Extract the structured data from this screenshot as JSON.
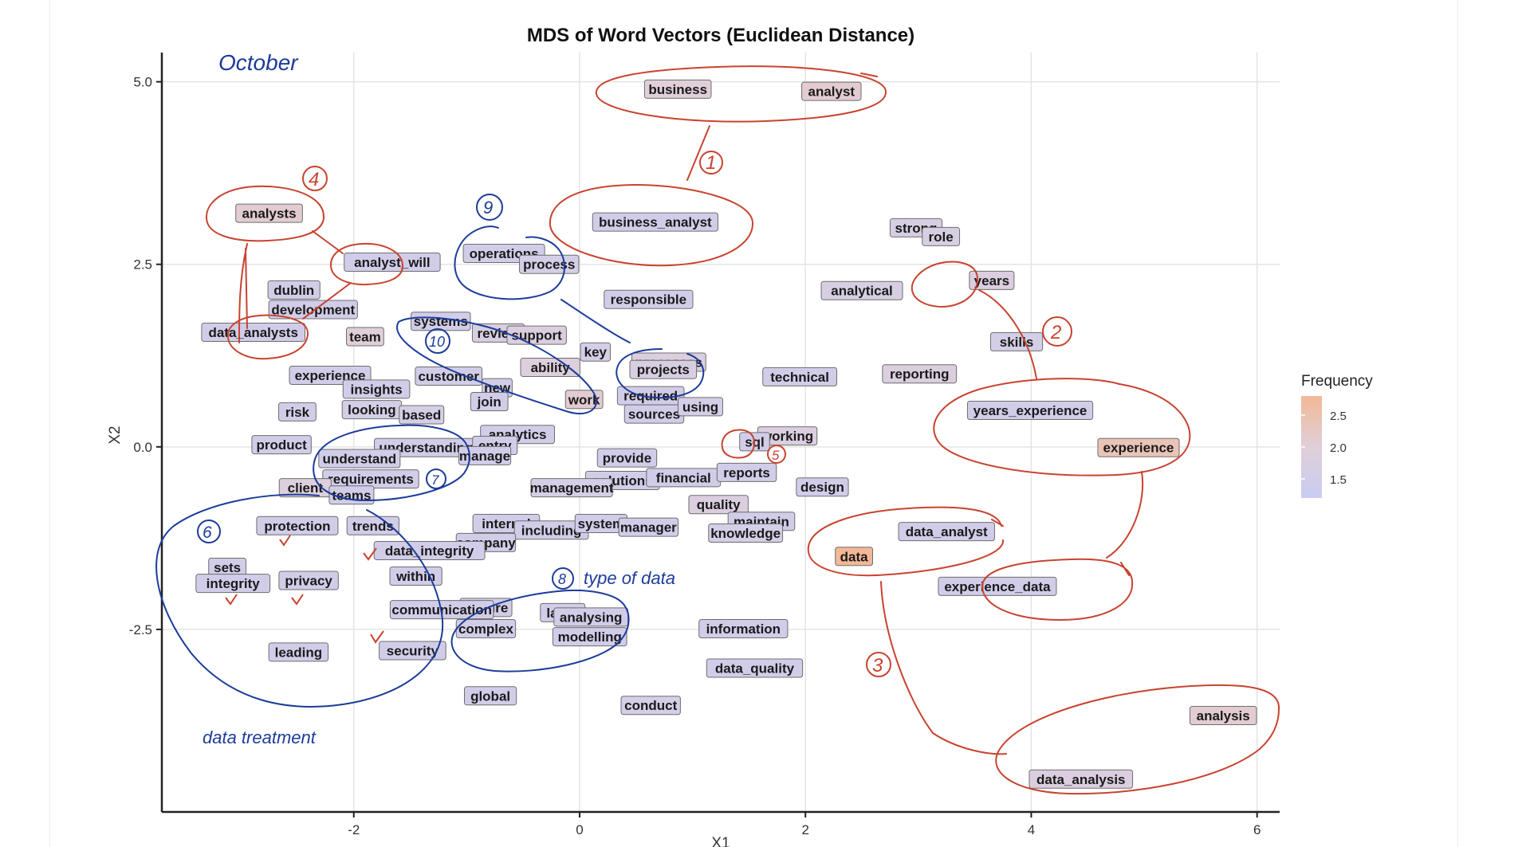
{
  "chart_data": {
    "type": "scatter",
    "title": "MDS of Word Vectors (Euclidean Distance)",
    "xlabel": "X1",
    "ylabel": "X2",
    "xlim": [
      -3.7,
      6.2
    ],
    "ylim": [
      -5.0,
      5.4
    ],
    "xticks": [
      -2,
      0,
      2,
      4,
      6
    ],
    "xtick_labels": [
      "-2",
      "0",
      "2",
      "4",
      "6"
    ],
    "yticks": [
      5.0,
      2.5,
      0.0,
      -2.5
    ],
    "ytick_labels": [
      "5.0",
      "2.5",
      "0.0",
      "-2.5"
    ],
    "grid": true,
    "legend": {
      "title": "Frequency",
      "position": "right",
      "ticks": [
        2.5,
        2.0,
        1.5
      ],
      "tick_labels": [
        "2.5",
        "2.0",
        "1.5"
      ],
      "range": [
        1.2,
        2.8
      ],
      "low_color": "#c8ccf2",
      "mid_color": "#e0cfd9",
      "high_color": "#f3b896"
    },
    "points": [
      {
        "label": "business",
        "x": 0.87,
        "y": 4.9,
        "freq": 2.0
      },
      {
        "label": "analyst",
        "x": 2.23,
        "y": 4.87,
        "freq": 2.1
      },
      {
        "label": "business_analyst",
        "x": 0.67,
        "y": 3.08,
        "freq": 1.5
      },
      {
        "label": "analysts",
        "x": -2.75,
        "y": 3.2,
        "freq": 2.1
      },
      {
        "label": "analyst_will",
        "x": -1.66,
        "y": 2.53,
        "freq": 1.5
      },
      {
        "label": "operations",
        "x": -0.67,
        "y": 2.65,
        "freq": 1.5
      },
      {
        "label": "process",
        "x": -0.27,
        "y": 2.5,
        "freq": 1.6
      },
      {
        "label": "dublin",
        "x": -2.53,
        "y": 2.15,
        "freq": 1.5
      },
      {
        "label": "development",
        "x": -2.36,
        "y": 1.88,
        "freq": 1.5
      },
      {
        "label": "responsible",
        "x": 0.61,
        "y": 2.02,
        "freq": 1.5
      },
      {
        "label": "systems",
        "x": -1.23,
        "y": 1.72,
        "freq": 1.5
      },
      {
        "label": "review",
        "x": -0.72,
        "y": 1.56,
        "freq": 1.7
      },
      {
        "label": "support",
        "x": -0.38,
        "y": 1.53,
        "freq": 1.8
      },
      {
        "label": "data_analysts",
        "x": -2.89,
        "y": 1.57,
        "freq": 1.5
      },
      {
        "label": "team",
        "x": -1.9,
        "y": 1.51,
        "freq": 2.0
      },
      {
        "label": "key",
        "x": 0.14,
        "y": 1.3,
        "freq": 1.6
      },
      {
        "label": "processes",
        "x": 0.79,
        "y": 1.16,
        "freq": 1.8
      },
      {
        "label": "projects",
        "x": 0.74,
        "y": 1.06,
        "freq": 1.7
      },
      {
        "label": "ability",
        "x": -0.26,
        "y": 1.09,
        "freq": 1.9
      },
      {
        "label": "experience",
        "x": -2.21,
        "y": 0.98,
        "freq": 1.5
      },
      {
        "label": "customer",
        "x": -1.16,
        "y": 0.97,
        "freq": 1.5
      },
      {
        "label": "insights",
        "x": -1.8,
        "y": 0.79,
        "freq": 1.5
      },
      {
        "label": "new",
        "x": -0.73,
        "y": 0.81,
        "freq": 1.5
      },
      {
        "label": "join",
        "x": -0.8,
        "y": 0.62,
        "freq": 1.5
      },
      {
        "label": "work",
        "x": 0.04,
        "y": 0.65,
        "freq": 2.1
      },
      {
        "label": "required",
        "x": 0.63,
        "y": 0.7,
        "freq": 1.5
      },
      {
        "label": "sources",
        "x": 0.66,
        "y": 0.45,
        "freq": 1.5
      },
      {
        "label": "using",
        "x": 1.07,
        "y": 0.55,
        "freq": 1.6
      },
      {
        "label": "risk",
        "x": -2.5,
        "y": 0.48,
        "freq": 1.5
      },
      {
        "label": "looking",
        "x": -1.84,
        "y": 0.51,
        "freq": 1.6
      },
      {
        "label": "based",
        "x": -1.4,
        "y": 0.44,
        "freq": 1.6
      },
      {
        "label": "analytics",
        "x": -0.55,
        "y": 0.17,
        "freq": 1.5
      },
      {
        "label": "understanding",
        "x": -1.36,
        "y": -0.01,
        "freq": 1.5
      },
      {
        "label": "entry",
        "x": -0.75,
        "y": 0.02,
        "freq": 1.5
      },
      {
        "label": "manage",
        "x": -0.84,
        "y": -0.12,
        "freq": 1.5
      },
      {
        "label": "understand",
        "x": -1.95,
        "y": -0.16,
        "freq": 1.5
      },
      {
        "label": "product",
        "x": -2.64,
        "y": 0.03,
        "freq": 1.5
      },
      {
        "label": "provide",
        "x": 0.42,
        "y": -0.15,
        "freq": 1.5
      },
      {
        "label": "solutions",
        "x": 0.38,
        "y": -0.46,
        "freq": 1.5
      },
      {
        "label": "financial",
        "x": 0.92,
        "y": -0.42,
        "freq": 1.5
      },
      {
        "label": "reports",
        "x": 1.48,
        "y": -0.35,
        "freq": 1.5
      },
      {
        "label": "requirements",
        "x": -1.85,
        "y": -0.44,
        "freq": 1.5
      },
      {
        "label": "management",
        "x": -0.07,
        "y": -0.56,
        "freq": 1.6
      },
      {
        "label": "client",
        "x": -2.43,
        "y": -0.56,
        "freq": 1.9
      },
      {
        "label": "teams",
        "x": -2.02,
        "y": -0.66,
        "freq": 1.5
      },
      {
        "label": "quality",
        "x": 1.23,
        "y": -0.79,
        "freq": 1.8
      },
      {
        "label": "design",
        "x": 2.15,
        "y": -0.55,
        "freq": 1.5
      },
      {
        "label": "working",
        "x": 1.84,
        "y": 0.15,
        "freq": 1.8
      },
      {
        "label": "sql",
        "x": 1.55,
        "y": 0.07,
        "freq": 1.5
      },
      {
        "label": "protection",
        "x": -2.5,
        "y": -1.08,
        "freq": 1.5
      },
      {
        "label": "trends",
        "x": -1.83,
        "y": -1.08,
        "freq": 1.5
      },
      {
        "label": "internal",
        "x": -0.65,
        "y": -1.05,
        "freq": 1.5
      },
      {
        "label": "including",
        "x": -0.25,
        "y": -1.14,
        "freq": 1.5
      },
      {
        "label": "system",
        "x": 0.19,
        "y": -1.05,
        "freq": 1.5
      },
      {
        "label": "manager",
        "x": 0.61,
        "y": -1.1,
        "freq": 1.5
      },
      {
        "label": "maintain",
        "x": 1.61,
        "y": -1.02,
        "freq": 1.5
      },
      {
        "label": "knowledge",
        "x": 1.47,
        "y": -1.18,
        "freq": 1.6
      },
      {
        "label": "company",
        "x": -0.83,
        "y": -1.31,
        "freq": 1.5
      },
      {
        "label": "data_integrity",
        "x": -1.33,
        "y": -1.42,
        "freq": 1.5
      },
      {
        "label": "data_analyst",
        "x": 3.25,
        "y": -1.16,
        "freq": 1.5
      },
      {
        "label": "data",
        "x": 2.43,
        "y": -1.5,
        "freq": 2.8
      },
      {
        "label": "sets",
        "x": -3.12,
        "y": -1.65,
        "freq": 1.5
      },
      {
        "label": "integrity",
        "x": -3.07,
        "y": -1.87,
        "freq": 1.5
      },
      {
        "label": "privacy",
        "x": -2.4,
        "y": -1.83,
        "freq": 1.5
      },
      {
        "label": "within",
        "x": -1.45,
        "y": -1.77,
        "freq": 1.5
      },
      {
        "label": "experience_data",
        "x": 3.7,
        "y": -1.91,
        "freq": 1.5
      },
      {
        "label": "ensure",
        "x": -0.83,
        "y": -2.2,
        "freq": 1.5
      },
      {
        "label": "communication",
        "x": -1.22,
        "y": -2.23,
        "freq": 1.5
      },
      {
        "label": "large",
        "x": -0.15,
        "y": -2.27,
        "freq": 1.5
      },
      {
        "label": "analysing",
        "x": 0.1,
        "y": -2.33,
        "freq": 1.5
      },
      {
        "label": "complex",
        "x": -0.83,
        "y": -2.49,
        "freq": 1.5
      },
      {
        "label": "modelling",
        "x": 0.09,
        "y": -2.6,
        "freq": 1.5
      },
      {
        "label": "information",
        "x": 1.45,
        "y": -2.49,
        "freq": 1.5
      },
      {
        "label": "leading",
        "x": -2.49,
        "y": -2.81,
        "freq": 1.5
      },
      {
        "label": "security",
        "x": -1.48,
        "y": -2.79,
        "freq": 1.5
      },
      {
        "label": "data_quality",
        "x": 1.55,
        "y": -3.03,
        "freq": 1.5
      },
      {
        "label": "global",
        "x": -0.79,
        "y": -3.41,
        "freq": 1.5
      },
      {
        "label": "conduct",
        "x": 0.63,
        "y": -3.54,
        "freq": 1.6
      },
      {
        "label": "strong",
        "x": 2.98,
        "y": 3.0,
        "freq": 1.7
      },
      {
        "label": "role",
        "x": 3.2,
        "y": 2.88,
        "freq": 1.7
      },
      {
        "label": "years",
        "x": 3.65,
        "y": 2.28,
        "freq": 1.8
      },
      {
        "label": "analytical",
        "x": 2.5,
        "y": 2.14,
        "freq": 1.7
      },
      {
        "label": "skills",
        "x": 3.87,
        "y": 1.44,
        "freq": 1.6
      },
      {
        "label": "technical",
        "x": 1.95,
        "y": 0.96,
        "freq": 1.5
      },
      {
        "label": "reporting",
        "x": 3.01,
        "y": 1.0,
        "freq": 1.8
      },
      {
        "label": "years_experience",
        "x": 3.99,
        "y": 0.5,
        "freq": 1.5
      },
      {
        "label": "experience",
        "x": 4.95,
        "y": -0.01,
        "freq": 2.4
      },
      {
        "label": "analysis",
        "x": 5.7,
        "y": -3.68,
        "freq": 2.1
      },
      {
        "label": "data_analysis",
        "x": 4.44,
        "y": -4.55,
        "freq": 1.8
      }
    ]
  },
  "annotations": {
    "note_month": "October",
    "note_data_type": "type of data",
    "note_data_treatment": "data treatment",
    "circle_numbers": [
      "1",
      "2",
      "3",
      "4",
      "5",
      "6",
      "7",
      "8",
      "9",
      "10"
    ]
  },
  "colors": {
    "red_ink": "#c8432f",
    "blue_ink": "#1c3c9a",
    "grid": "#e4e4e4",
    "label_border": "#6d6d6d"
  }
}
